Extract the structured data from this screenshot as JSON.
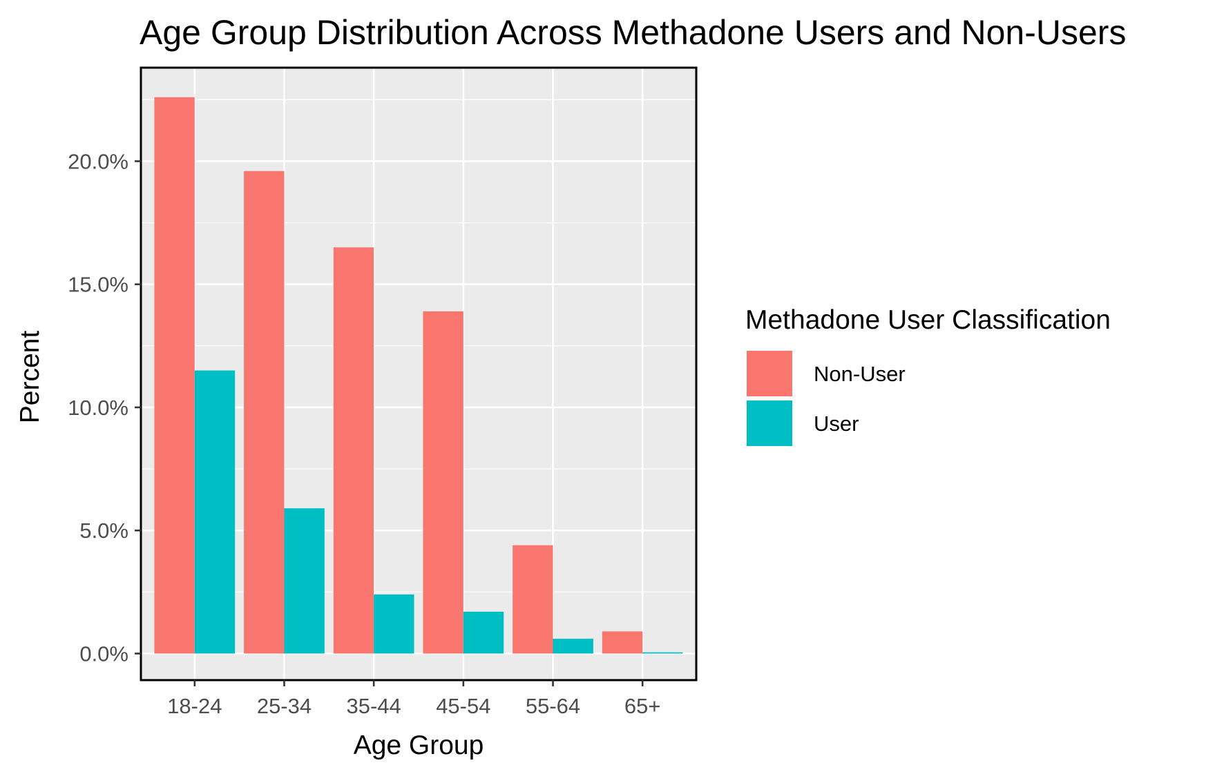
{
  "chart_data": {
    "type": "bar",
    "title": "Age Group Distribution Across Methadone Users and Non-Users",
    "xlabel": "Age Group",
    "ylabel": "Percent",
    "categories": [
      "18-24",
      "25-34",
      "35-44",
      "45-54",
      "55-64",
      "65+"
    ],
    "series": [
      {
        "name": "Non-User",
        "color": "#F8766D",
        "values": [
          22.6,
          19.6,
          16.5,
          13.9,
          4.4,
          0.9
        ]
      },
      {
        "name": "User",
        "color": "#00BFC4",
        "values": [
          11.5,
          5.9,
          2.4,
          1.7,
          0.6,
          0.05
        ]
      }
    ],
    "ylim": [
      -1.08,
      23.8
    ],
    "y_ticks": [
      0,
      5,
      10,
      15,
      20
    ],
    "y_tick_labels": [
      "0.0%",
      "5.0%",
      "10.0%",
      "15.0%",
      "20.0%"
    ],
    "grid": true,
    "panel_background": "#EBEBEB",
    "legend": {
      "title": "Methadone User Classification",
      "position": "right",
      "entries": [
        "Non-User",
        "User"
      ]
    }
  }
}
